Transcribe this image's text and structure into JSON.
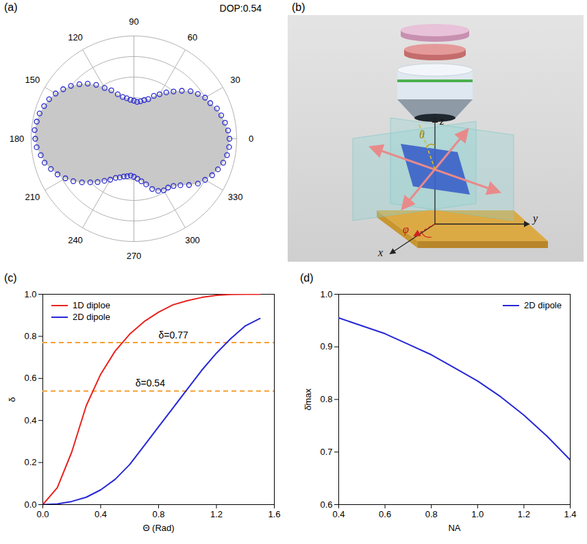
{
  "chart_data": [
    {
      "type": "polar",
      "panel": "(a)",
      "annotation": "DOP:0.54",
      "xlim": [
        0,
        360
      ],
      "xticks": [
        0,
        30,
        60,
        90,
        120,
        150,
        180,
        210,
        240,
        270,
        300,
        330
      ],
      "ylim": [
        0,
        1
      ],
      "yticks": [
        0.2,
        0.4,
        0.6,
        0.8,
        1
      ],
      "x": [
        0,
        5,
        10,
        15,
        20,
        25,
        30,
        35,
        40,
        45,
        50,
        55,
        60,
        65,
        70,
        75,
        80,
        85,
        90,
        95,
        100,
        105,
        110,
        115,
        120,
        125,
        130,
        135,
        140,
        145,
        150,
        155,
        160,
        165,
        170,
        175,
        180,
        185,
        190,
        195,
        200,
        205,
        210,
        215,
        220,
        225,
        230,
        235,
        240,
        245,
        250,
        255,
        260,
        265,
        270,
        275,
        280,
        285,
        290,
        295,
        300,
        305,
        310,
        315,
        320,
        325,
        330,
        335,
        340,
        345,
        350,
        355
      ],
      "series": [
        {
          "type": "area",
          "color": "#c8c8c8",
          "values": [
            0.93,
            0.92,
            0.9,
            0.88,
            0.86,
            0.82,
            0.8,
            0.76,
            0.72,
            0.66,
            0.6,
            0.55,
            0.5,
            0.46,
            0.41,
            0.39,
            0.37,
            0.36,
            0.37,
            0.38,
            0.4,
            0.42,
            0.46,
            0.52,
            0.57,
            0.64,
            0.7,
            0.75,
            0.8,
            0.84,
            0.88,
            0.91,
            0.93,
            0.95,
            0.96,
            0.97,
            0.96,
            0.95,
            0.92,
            0.9,
            0.86,
            0.82,
            0.77,
            0.72,
            0.66,
            0.6,
            0.55,
            0.5,
            0.46,
            0.42,
            0.4,
            0.38,
            0.37,
            0.36,
            0.37,
            0.39,
            0.42,
            0.46,
            0.52,
            0.56,
            0.58,
            0.58,
            0.6,
            0.64,
            0.7,
            0.76,
            0.8,
            0.84,
            0.87,
            0.9,
            0.92,
            0.93
          ]
        },
        {
          "type": "scatter",
          "marker": "circle",
          "color": "#2b2bd0",
          "values": [
            0.93,
            0.92,
            0.9,
            0.88,
            0.86,
            0.82,
            0.8,
            0.76,
            0.72,
            0.66,
            0.6,
            0.55,
            0.5,
            0.46,
            0.41,
            0.39,
            0.37,
            0.36,
            0.37,
            0.38,
            0.4,
            0.42,
            0.46,
            0.52,
            0.57,
            0.64,
            0.7,
            0.75,
            0.8,
            0.84,
            0.88,
            0.91,
            0.93,
            0.95,
            0.96,
            0.97,
            0.96,
            0.95,
            0.92,
            0.9,
            0.86,
            0.82,
            0.77,
            0.72,
            0.66,
            0.6,
            0.55,
            0.5,
            0.46,
            0.42,
            0.4,
            0.38,
            0.37,
            0.36,
            0.37,
            0.39,
            0.42,
            0.46,
            0.52,
            0.56,
            0.58,
            0.58,
            0.6,
            0.64,
            0.7,
            0.76,
            0.8,
            0.84,
            0.87,
            0.9,
            0.92,
            0.93
          ]
        }
      ]
    },
    {
      "type": "line",
      "panel": "(c)",
      "x_label": "Θ (Rad)",
      "y_label": "δ",
      "xlim": [
        0,
        1.6
      ],
      "xticks": [
        {
          "value": 0,
          "label": "0.0"
        },
        0.4,
        0.8,
        1.2,
        1.6
      ],
      "ylim": [
        0,
        1
      ],
      "yticks": [
        {
          "value": 0,
          "label": "0.0"
        },
        0.2,
        0.4,
        0.6,
        0.8,
        {
          "value": 1,
          "label": "1.0"
        }
      ],
      "legend": "top-left",
      "x": [
        0,
        0.1,
        0.2,
        0.3,
        0.4,
        0.5,
        0.6,
        0.7,
        0.8,
        0.9,
        1,
        1.1,
        1.2,
        1.3,
        1.4,
        1.5
      ],
      "series": [
        {
          "name": "1D diploe",
          "color": "#e8231f",
          "line_style": "solid",
          "values": [
            0,
            0.08,
            0.25,
            0.47,
            0.62,
            0.73,
            0.81,
            0.87,
            0.915,
            0.95,
            0.97,
            0.985,
            0.995,
            0.999,
            1,
            1
          ]
        },
        {
          "name": "2D dipole",
          "color": "#2727d6",
          "line_style": "solid",
          "values": [
            0,
            0.003,
            0.015,
            0.035,
            0.07,
            0.12,
            0.19,
            0.28,
            0.37,
            0.46,
            0.55,
            0.64,
            0.72,
            0.79,
            0.85,
            0.885
          ]
        }
      ],
      "reference_lines": [
        {
          "value": 0.77,
          "label": "δ=0.77",
          "color": "#f5a030",
          "line_style": "dashed"
        },
        {
          "value": 0.54,
          "label": "δ=0.54",
          "color": "#f5a030",
          "line_style": "dashed"
        }
      ]
    },
    {
      "type": "line",
      "panel": "(d)",
      "x_label": "NA",
      "y_label": "δ̄max",
      "xlim": [
        0.4,
        1.4
      ],
      "xticks": [
        0.4,
        0.6,
        0.8,
        {
          "value": 1,
          "label": "1.0"
        },
        1.2,
        1.4
      ],
      "ylim": [
        0.6,
        1
      ],
      "yticks": [
        0.6,
        0.7,
        0.8,
        0.9,
        {
          "value": 1,
          "label": "1.0"
        }
      ],
      "legend": "top-right",
      "x": [
        0.4,
        0.5,
        0.6,
        0.7,
        0.8,
        0.9,
        1,
        1.1,
        1.2,
        1.3,
        1.4
      ],
      "series": [
        {
          "name": "2D dipole",
          "color": "#2727d6",
          "line_style": "solid",
          "values": [
            0.955,
            0.94,
            0.925,
            0.905,
            0.885,
            0.86,
            0.835,
            0.805,
            0.77,
            0.73,
            0.685
          ]
        }
      ]
    }
  ],
  "diagram": {
    "panel": "(b)",
    "labels": [
      "x",
      "y",
      "z",
      "θ",
      "φ"
    ]
  }
}
